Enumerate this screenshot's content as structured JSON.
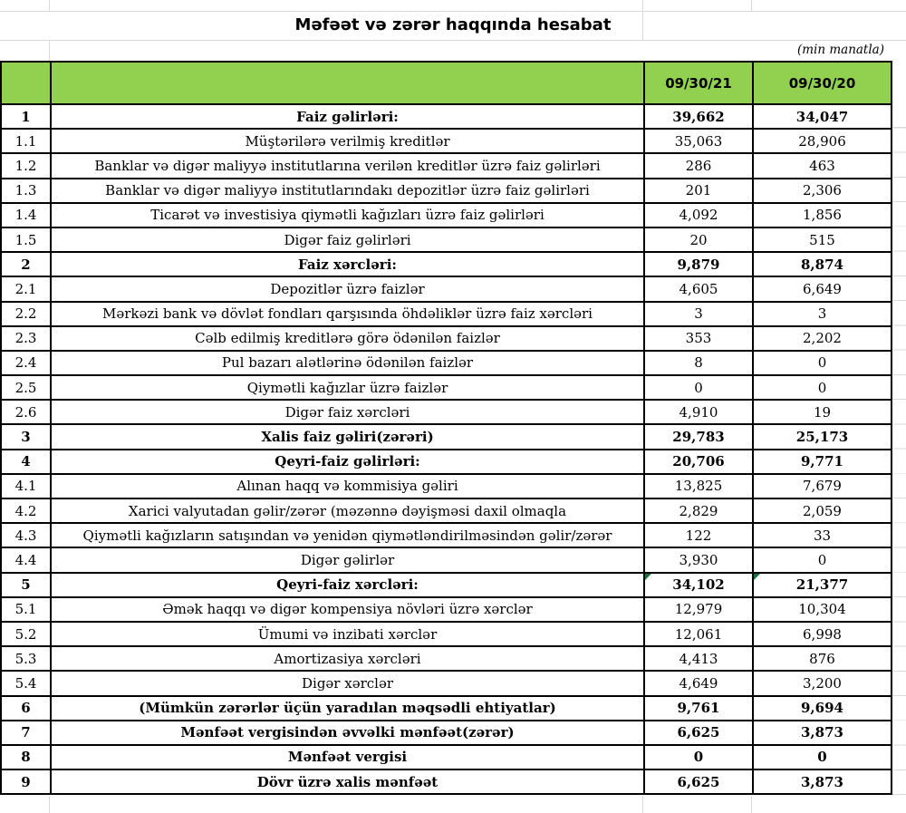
{
  "page": {
    "title": "Məfəət və zərər haqqında hesabat",
    "unit_note": "(min manatla)"
  },
  "table": {
    "header": {
      "period1": "09/30/21",
      "period2": "09/30/20"
    },
    "rows": [
      {
        "num": "1",
        "label": "Faiz gəlirləri:",
        "v1": "39,662",
        "v2": "34,047",
        "bold": true,
        "flagged": false
      },
      {
        "num": "1.1",
        "label": "Müştərilərə verilmiş kreditlər",
        "v1": "35,063",
        "v2": "28,906",
        "bold": false,
        "flagged": false
      },
      {
        "num": "1.2",
        "label": "Banklar və digər maliyyə institutlarına verilən kreditlər üzrə faiz gəlirləri",
        "v1": "286",
        "v2": "463",
        "bold": false,
        "flagged": false
      },
      {
        "num": "1.3",
        "label": "Banklar və digər maliyyə institutlarındakı depozitlər üzrə faiz gəlirləri",
        "v1": "201",
        "v2": "2,306",
        "bold": false,
        "flagged": false
      },
      {
        "num": "1.4",
        "label": "Ticarət və investisiya qiymətli kağızları üzrə faiz gəlirləri",
        "v1": "4,092",
        "v2": "1,856",
        "bold": false,
        "flagged": false
      },
      {
        "num": "1.5",
        "label": "Digər faiz gəlirləri",
        "v1": "20",
        "v2": "515",
        "bold": false,
        "flagged": false
      },
      {
        "num": "2",
        "label": "Faiz xərcləri:",
        "v1": "9,879",
        "v2": "8,874",
        "bold": true,
        "flagged": false
      },
      {
        "num": "2.1",
        "label": "Depozitlər üzrə faizlər",
        "v1": "4,605",
        "v2": "6,649",
        "bold": false,
        "flagged": false
      },
      {
        "num": "2.2",
        "label": "Mərkəzi bank və dövlət fondları qarşısında öhdəliklər üzrə faiz xərcləri",
        "v1": "3",
        "v2": "3",
        "bold": false,
        "flagged": false
      },
      {
        "num": "2.3",
        "label": "Cəlb edilmiş kreditlərə görə ödənilən faizlər",
        "v1": "353",
        "v2": "2,202",
        "bold": false,
        "flagged": false
      },
      {
        "num": "2.4",
        "label": "Pul bazarı alətlərinə ödənilən faizlər",
        "v1": "8",
        "v2": "0",
        "bold": false,
        "flagged": false
      },
      {
        "num": "2.5",
        "label": "Qiymətli kağızlar üzrə faizlər",
        "v1": "0",
        "v2": "0",
        "bold": false,
        "flagged": false
      },
      {
        "num": "2.6",
        "label": "Digər faiz xərcləri",
        "v1": "4,910",
        "v2": "19",
        "bold": false,
        "flagged": false
      },
      {
        "num": "3",
        "label": "Xalis faiz gəliri(zərəri)",
        "v1": "29,783",
        "v2": "25,173",
        "bold": true,
        "flagged": false
      },
      {
        "num": "4",
        "label": "Qeyri-faiz gəlirləri:",
        "v1": "20,706",
        "v2": "9,771",
        "bold": true,
        "flagged": false
      },
      {
        "num": "4.1",
        "label": "Alınan haqq və kommisiya gəliri",
        "v1": "13,825",
        "v2": "7,679",
        "bold": false,
        "flagged": false
      },
      {
        "num": "4.2",
        "label": "Xarici valyutadan gəlir/zərər (məzənnə dəyişməsi daxil olmaqla",
        "v1": "2,829",
        "v2": "2,059",
        "bold": false,
        "flagged": false
      },
      {
        "num": "4.3",
        "label": "Qiymətli kağızların satışından və yenidən qiymətləndirilməsindən gəlir/zərər",
        "v1": "122",
        "v2": "33",
        "bold": false,
        "flagged": false
      },
      {
        "num": "4.4",
        "label": "Digər gəlirlər",
        "v1": "3,930",
        "v2": "0",
        "bold": false,
        "flagged": false
      },
      {
        "num": "5",
        "label": "Qeyri-faiz xərcləri:",
        "v1": "34,102",
        "v2": "21,377",
        "bold": true,
        "flagged": true
      },
      {
        "num": "5.1",
        "label": "Əmək haqqı və digər kompensiya növləri üzrə xərclər",
        "v1": "12,979",
        "v2": "10,304",
        "bold": false,
        "flagged": false
      },
      {
        "num": "5.2",
        "label": "Ümumi və inzibati xərclər",
        "v1": "12,061",
        "v2": "6,998",
        "bold": false,
        "flagged": false
      },
      {
        "num": "5.3",
        "label": "Amortizasiya xərcləri",
        "v1": "4,413",
        "v2": "876",
        "bold": false,
        "flagged": false
      },
      {
        "num": "5.4",
        "label": "Digər xərclər",
        "v1": "4,649",
        "v2": "3,200",
        "bold": false,
        "flagged": false
      },
      {
        "num": "6",
        "label": "(Mümkün zərərlər üçün yaradılan məqsədli ehtiyatlar)",
        "v1": "9,761",
        "v2": "9,694",
        "bold": true,
        "flagged": false
      },
      {
        "num": "7",
        "label": "Mənfəət vergisindən əvvəlki mənfəət(zərər)",
        "v1": "6,625",
        "v2": "3,873",
        "bold": true,
        "flagged": false
      },
      {
        "num": "8",
        "label": "Mənfəət vergisi",
        "v1": "0",
        "v2": "0",
        "bold": true,
        "flagged": false
      },
      {
        "num": "9",
        "label": "Dövr üzrə xalis mənfəət",
        "v1": "6,625",
        "v2": "3,873",
        "bold": true,
        "flagged": false
      }
    ]
  },
  "colors": {
    "header_green": "#92D050",
    "table_border": "#000000",
    "margin_gridline": "#D9D9D9",
    "error_flag_triangle": "#1E7145"
  }
}
